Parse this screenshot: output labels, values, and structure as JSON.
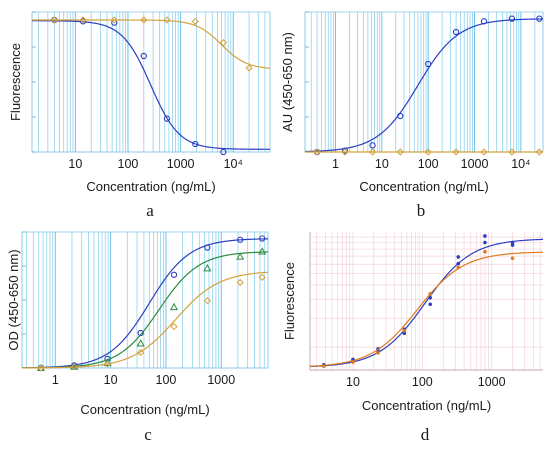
{
  "chart_data": [
    {
      "panel_label": "a",
      "type": "line",
      "xlabel": "Concentration (ng/mL)",
      "ylabel": "Fluorescence",
      "xscale": "log",
      "xlim": [
        1.5,
        50000
      ],
      "ylim": [
        0,
        1.05
      ],
      "xticklabels": [
        "10",
        "100",
        "1000",
        "10⁴"
      ],
      "xtick_values": [
        10,
        100,
        1000,
        10000
      ],
      "grid": "vertical log grid (light blue)",
      "series": [
        {
          "color": "#2b3fc2",
          "marker": "circle",
          "x": [
            4,
            14,
            55,
            200,
            550,
            1900,
            6500
          ],
          "y": [
            0.99,
            0.98,
            0.97,
            0.72,
            0.25,
            0.06,
            0.0
          ],
          "fit": {
            "top": 0.985,
            "bottom": 0.02,
            "ec50": 270,
            "hill": 1.6
          }
        },
        {
          "color": "#d4a23a",
          "marker": "diamond",
          "x": [
            4,
            14,
            55,
            200,
            550,
            1900,
            6500,
            20000
          ],
          "y": [
            0.99,
            0.99,
            0.99,
            0.99,
            0.99,
            0.98,
            0.82,
            0.63
          ],
          "fit": {
            "top": 0.99,
            "bottom": 0.62,
            "ec50": 6000,
            "hill": 1.8
          }
        }
      ]
    },
    {
      "panel_label": "b",
      "type": "line",
      "xlabel": "Concentration (ng/mL)",
      "ylabel": "AU (450-650 nm)",
      "xscale": "log",
      "xlim": [
        0.22,
        30000
      ],
      "ylim": [
        0,
        1.05
      ],
      "xticklabels": [
        "1",
        "10",
        "100",
        "1000",
        "10⁴"
      ],
      "xtick_values": [
        1,
        10,
        100,
        1000,
        10000
      ],
      "grid": "vertical log grid (light blue)",
      "series": [
        {
          "color": "#2b3fc2",
          "marker": "circle",
          "x": [
            0.4,
            1.6,
            6.3,
            25,
            100,
            400,
            1600,
            6400,
            25000
          ],
          "y": [
            0.0,
            0.01,
            0.05,
            0.27,
            0.66,
            0.9,
            0.98,
            1.0,
            1.0
          ],
          "fit": {
            "top": 1.0,
            "bottom": 0.0,
            "ec50": 60,
            "hill": 1.0
          }
        },
        {
          "color": "#d4a23a",
          "marker": "diamond",
          "x": [
            0.4,
            1.6,
            6.3,
            25,
            100,
            400,
            1600,
            6400,
            25000
          ],
          "y": [
            0.0,
            0.0,
            0.0,
            0.0,
            0.0,
            0.0,
            0.0,
            0.0,
            0.0
          ],
          "fit": {
            "top": 0.0,
            "bottom": 0.0,
            "ec50": 60,
            "hill": 1.0
          }
        }
      ]
    },
    {
      "panel_label": "c",
      "type": "line",
      "xlabel": "Concentration (ng/mL)",
      "ylabel": "OD (450-650 nm)",
      "xscale": "log",
      "xlim": [
        0.25,
        7000
      ],
      "ylim": [
        0,
        1.05
      ],
      "xticklabels": [
        "1",
        "10",
        "100",
        "1000"
      ],
      "xtick_values": [
        1,
        10,
        100,
        1000
      ],
      "grid": "vertical log grid (light blue)",
      "series": [
        {
          "color": "#2b3fc2",
          "marker": "circle",
          "x": [
            0.55,
            2.2,
            8.8,
            35,
            140,
            560,
            2200,
            5500
          ],
          "y": [
            0.0,
            0.02,
            0.07,
            0.27,
            0.72,
            0.93,
            0.99,
            1.0
          ],
          "fit": {
            "top": 1.0,
            "bottom": 0.0,
            "ec50": 50,
            "hill": 1.2
          }
        },
        {
          "color": "#2e8b3e",
          "marker": "triangle",
          "x": [
            0.55,
            2.2,
            8.8,
            35,
            140,
            560,
            2200,
            5500
          ],
          "y": [
            0.0,
            0.01,
            0.04,
            0.19,
            0.47,
            0.77,
            0.86,
            0.9
          ],
          "fit": {
            "top": 0.9,
            "bottom": 0.0,
            "ec50": 75,
            "hill": 1.2
          }
        },
        {
          "color": "#d4a23a",
          "marker": "diamond",
          "x": [
            0.55,
            2.2,
            8.8,
            35,
            140,
            560,
            2200,
            5500
          ],
          "y": [
            0.0,
            0.01,
            0.03,
            0.12,
            0.32,
            0.52,
            0.66,
            0.7
          ],
          "fit": {
            "top": 0.75,
            "bottom": 0.0,
            "ec50": 150,
            "hill": 1.1
          }
        }
      ]
    },
    {
      "panel_label": "d",
      "type": "line",
      "xlabel": "Concentration (ng/mL)",
      "ylabel": "Fluorescence",
      "xscale": "log",
      "xlim": [
        2.4,
        5500
      ],
      "ylim": [
        0,
        1.05
      ],
      "xticklabels": [
        "10",
        "100",
        "1000"
      ],
      "xtick_values": [
        10,
        100,
        1000
      ],
      "grid": "log grid both directions (light pink)",
      "series": [
        {
          "color": "#2b3fc2",
          "marker": "dot",
          "x": [
            3.8,
            3.8,
            10,
            10,
            23,
            23,
            55,
            55,
            130,
            130,
            330,
            330,
            800,
            800,
            2000,
            2000
          ],
          "y": [
            0.03,
            0.04,
            0.07,
            0.08,
            0.14,
            0.16,
            0.28,
            0.31,
            0.55,
            0.5,
            0.86,
            0.81,
            1.02,
            0.97,
            0.97,
            0.95
          ],
          "fit": {
            "top": 1.0,
            "bottom": 0.02,
            "ec50": 110,
            "hill": 1.3
          }
        },
        {
          "color": "#e07a1c",
          "marker": "dot",
          "x": [
            3.8,
            10,
            23,
            55,
            130,
            330,
            800,
            2000
          ],
          "y": [
            0.03,
            0.06,
            0.13,
            0.3,
            0.58,
            0.78,
            0.9,
            0.85
          ],
          "fit": {
            "top": 0.9,
            "bottom": 0.02,
            "ec50": 85,
            "hill": 1.3
          }
        }
      ]
    }
  ]
}
